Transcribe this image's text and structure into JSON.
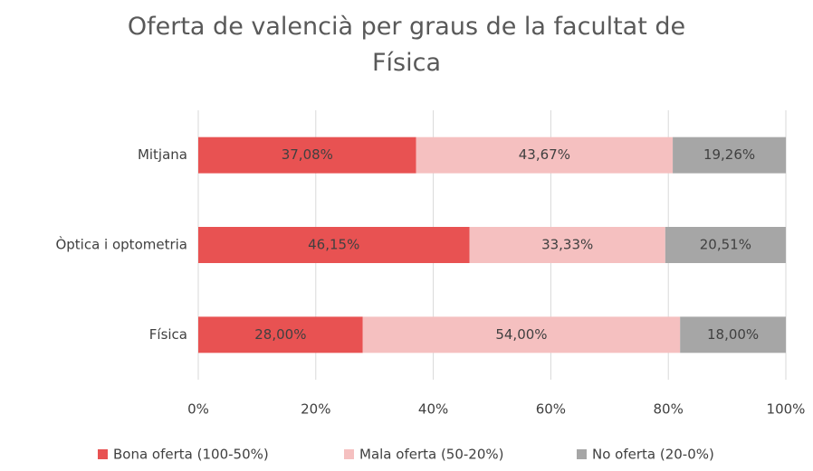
{
  "chart_data": {
    "type": "stacked-bar-horizontal",
    "title": "Oferta de valencià per graus de la facultat de Física",
    "categories": [
      "Mitjana",
      "Òptica i optometria",
      "Física"
    ],
    "series": [
      {
        "name": "Bona oferta (100-50%)",
        "color": "#e85252",
        "values": [
          37.08,
          46.15,
          28.0
        ],
        "value_labels": [
          "37,08%",
          "46,15%",
          "28,00%"
        ]
      },
      {
        "name": "Mala oferta (50-20%)",
        "color": "#f5c0c0",
        "values": [
          43.67,
          33.33,
          54.0
        ],
        "value_labels": [
          "43,67%",
          "33,33%",
          "54,00%"
        ]
      },
      {
        "name": "No oferta (20-0%)",
        "color": "#a6a6a6",
        "values": [
          19.26,
          20.51,
          18.0
        ],
        "value_labels": [
          "19,26%",
          "20,51%",
          "18,00%"
        ]
      }
    ],
    "xlim": [
      0,
      100
    ],
    "xticks": [
      {
        "value": 0,
        "label": "0%"
      },
      {
        "value": 20,
        "label": "20%"
      },
      {
        "value": 40,
        "label": "40%"
      },
      {
        "value": 60,
        "label": "60%"
      },
      {
        "value": 80,
        "label": "80%"
      },
      {
        "value": 100,
        "label": "100%"
      }
    ],
    "grid": true,
    "legend": "bottom"
  }
}
